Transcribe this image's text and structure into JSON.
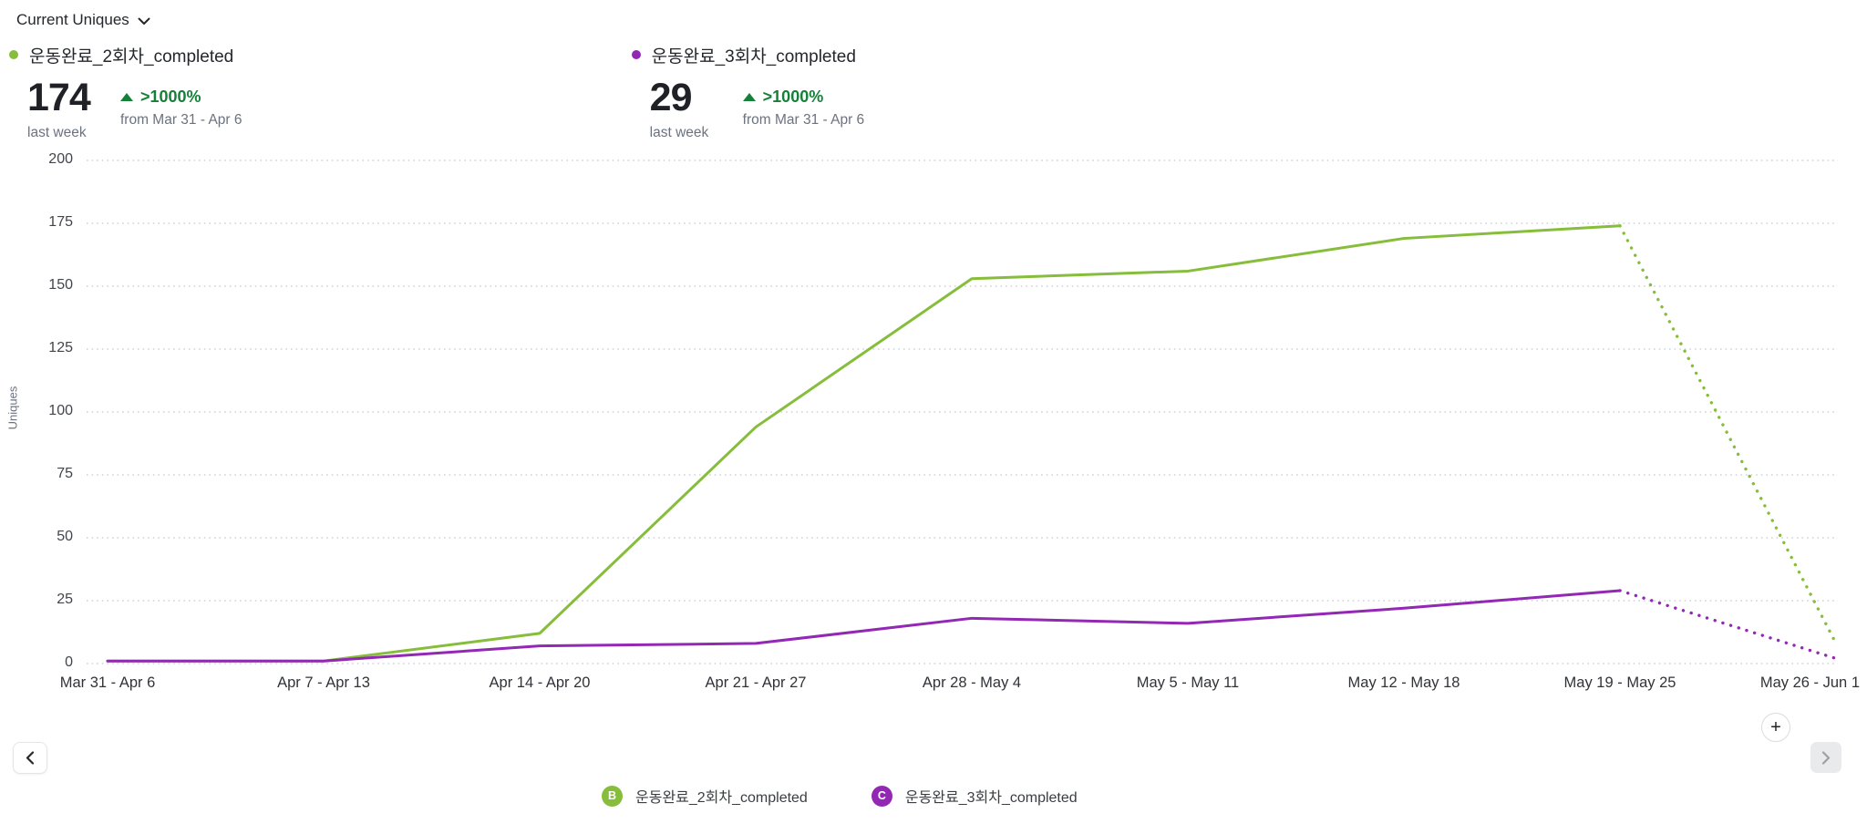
{
  "header": {
    "metric_selector_label": "Current Uniques"
  },
  "colors": {
    "series_green": "#86bd3a",
    "series_purple": "#9228b4",
    "positive_green": "#158038",
    "gridline": "#ccd2dd",
    "text_dark": "#24272c",
    "text_gray": "#6b7280"
  },
  "summaries": [
    {
      "series": "운동완료_2회차_completed",
      "color": "#86bd3a",
      "value": "174",
      "period": "last week",
      "change": ">1000%",
      "comparison": "from Mar 31 - Apr 6"
    },
    {
      "series": "운동완료_3회차_completed",
      "color": "#9228b4",
      "value": "29",
      "period": "last week",
      "change": ">1000%",
      "comparison": "from Mar 31 - Apr 6"
    }
  ],
  "chart_data": {
    "type": "line",
    "title": "",
    "xlabel": "",
    "ylabel": "Uniques",
    "ylim": [
      0,
      200
    ],
    "yticks": [
      0,
      25,
      50,
      75,
      100,
      125,
      150,
      175,
      200
    ],
    "grid": "horizontal-dotted",
    "legend_position": "bottom",
    "categories": [
      "Mar 31 - Apr 6",
      "Apr 7 - Apr 13",
      "Apr 14 - Apr 20",
      "Apr 21 - Apr 27",
      "Apr 28 - May 4",
      "May 5 - May 11",
      "May 12 - May 18",
      "May 19 - May 25",
      "May 26 - Jun 1"
    ],
    "series": [
      {
        "name": "운동완료_2회차_completed",
        "color": "#86bd3a",
        "values": [
          1,
          1,
          12,
          94,
          153,
          156,
          169,
          174,
          8
        ],
        "dashed_from_index": 7,
        "note": "final segment dotted (incomplete week projection)"
      },
      {
        "name": "운동완료_3회차_completed",
        "color": "#9228b4",
        "values": [
          1,
          1,
          7,
          8,
          18,
          16,
          22,
          29,
          2
        ],
        "dashed_from_index": 7,
        "note": "final segment dotted (incomplete week projection)"
      }
    ]
  },
  "legend": [
    {
      "letter": "B",
      "label": "운동완료_2회차_completed",
      "color": "#86bd3a"
    },
    {
      "letter": "C",
      "label": "운동완료_3회차_completed",
      "color": "#9228b4"
    }
  ],
  "controls": {
    "prev": "previous page",
    "next": "next page",
    "add": "+"
  }
}
